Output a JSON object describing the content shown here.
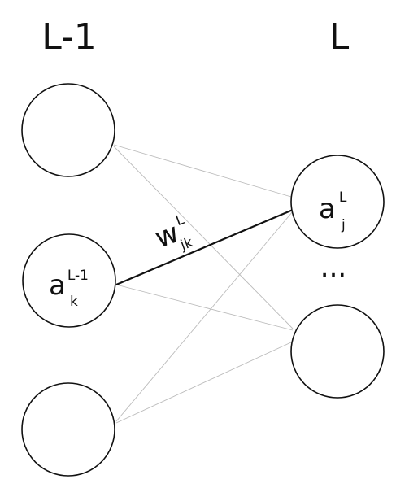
{
  "layers": [
    {
      "label": "L-1"
    },
    {
      "label": "L"
    }
  ],
  "labeled_nodes": [
    {
      "base": "a",
      "sup": "L-1",
      "sub": "k"
    },
    {
      "base": "a",
      "sup": "L",
      "sub": "j"
    }
  ],
  "weight": {
    "base": "w",
    "sup": "L",
    "sub": "jk"
  },
  "ellipsis": "..."
}
